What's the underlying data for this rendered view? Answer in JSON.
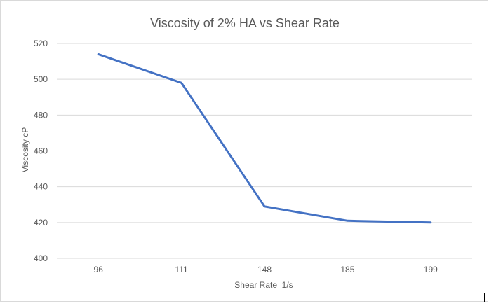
{
  "chart_data": {
    "type": "line",
    "title": "Viscosity of 2% HA vs Shear Rate",
    "xlabel": "Shear Rate  1/s",
    "ylabel": "Viscosity cP",
    "categories": [
      "96",
      "111",
      "148",
      "185",
      "199"
    ],
    "series": [
      {
        "values": [
          514,
          498,
          429,
          421,
          420
        ],
        "color": "#4472c4"
      }
    ],
    "ylim": [
      400,
      520
    ],
    "yticks": [
      400,
      420,
      440,
      460,
      480,
      500,
      520
    ],
    "grid": true,
    "legend": "none"
  },
  "colors": {
    "line": "#4472c4",
    "grid": "#d9d9d9",
    "text": "#595959",
    "border": "#d9d9d9"
  }
}
